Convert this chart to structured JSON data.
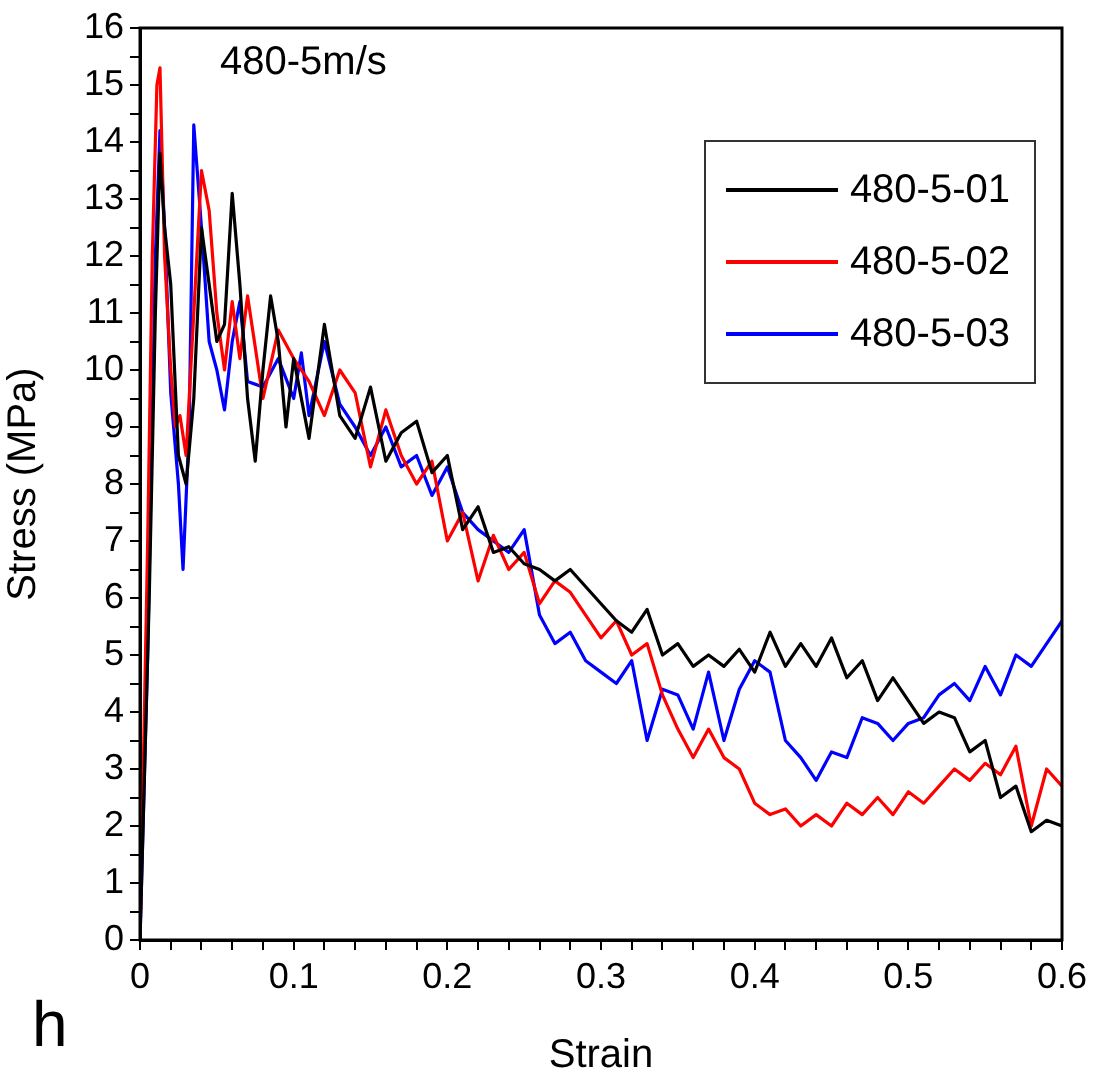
{
  "chart_data": {
    "type": "line",
    "title": "480-5m/s",
    "xlabel": "Strain",
    "ylabel": "Stress (MPa)",
    "annotations": [
      "h"
    ],
    "xlim": [
      0,
      0.6
    ],
    "ylim": [
      0,
      16
    ],
    "xticks": [
      0,
      {
        "value": 0.02,
        "label": null
      },
      {
        "value": 0.04,
        "label": null
      },
      {
        "value": 0.06,
        "label": null
      },
      {
        "value": 0.08,
        "label": null
      },
      0.1,
      {
        "value": 0.12,
        "label": null
      },
      {
        "value": 0.14,
        "label": null
      },
      {
        "value": 0.16,
        "label": null
      },
      {
        "value": 0.18,
        "label": null
      },
      0.2,
      {
        "value": 0.22,
        "label": null
      },
      {
        "value": 0.24,
        "label": null
      },
      {
        "value": 0.26,
        "label": null
      },
      {
        "value": 0.28,
        "label": null
      },
      0.3,
      {
        "value": 0.32,
        "label": null
      },
      {
        "value": 0.34,
        "label": null
      },
      {
        "value": 0.36,
        "label": null
      },
      {
        "value": 0.38,
        "label": null
      },
      0.4,
      {
        "value": 0.42,
        "label": null
      },
      {
        "value": 0.44,
        "label": null
      },
      {
        "value": 0.46,
        "label": null
      },
      {
        "value": 0.48,
        "label": null
      },
      0.5,
      {
        "value": 0.52,
        "label": null
      },
      {
        "value": 0.54,
        "label": null
      },
      {
        "value": 0.56,
        "label": null
      },
      {
        "value": 0.58,
        "label": null
      },
      0.6
    ],
    "yticks": [
      0,
      {
        "value": 0.5,
        "label": null
      },
      1,
      {
        "value": 1.5,
        "label": null
      },
      2,
      {
        "value": 2.5,
        "label": null
      },
      3,
      {
        "value": 3.5,
        "label": null
      },
      4,
      {
        "value": 4.5,
        "label": null
      },
      5,
      {
        "value": 5.5,
        "label": null
      },
      6,
      {
        "value": 6.5,
        "label": null
      },
      7,
      {
        "value": 7.5,
        "label": null
      },
      8,
      {
        "value": 8.5,
        "label": null
      },
      9,
      {
        "value": 9.5,
        "label": null
      },
      10,
      {
        "value": 10.5,
        "label": null
      },
      11,
      {
        "value": 11.5,
        "label": null
      },
      12,
      {
        "value": 12.5,
        "label": null
      },
      13,
      {
        "value": 13.5,
        "label": null
      },
      14,
      {
        "value": 14.5,
        "label": null
      },
      15,
      {
        "value": 15.5,
        "label": null
      },
      16
    ],
    "grid": false,
    "legend": "top right",
    "marker": "none",
    "line_style": "solid",
    "series": [
      {
        "name": "480-5-01",
        "color": "#000000",
        "x": [
          0,
          0.003,
          0.006,
          0.01,
          0.013,
          0.016,
          0.02,
          0.025,
          0.03,
          0.035,
          0.04,
          0.045,
          0.05,
          0.055,
          0.06,
          0.065,
          0.07,
          0.075,
          0.08,
          0.085,
          0.09,
          0.095,
          0.1,
          0.11,
          0.12,
          0.13,
          0.14,
          0.15,
          0.16,
          0.17,
          0.18,
          0.19,
          0.2,
          0.21,
          0.22,
          0.23,
          0.24,
          0.25,
          0.26,
          0.27,
          0.28,
          0.3,
          0.31,
          0.32,
          0.33,
          0.34,
          0.35,
          0.36,
          0.37,
          0.38,
          0.39,
          0.4,
          0.41,
          0.42,
          0.43,
          0.44,
          0.45,
          0.46,
          0.47,
          0.48,
          0.49,
          0.5,
          0.51,
          0.52,
          0.53,
          0.54,
          0.55,
          0.56,
          0.57,
          0.58,
          0.59,
          0.6
        ],
        "values": [
          0,
          3,
          6,
          11,
          13.8,
          12.5,
          11.5,
          8.5,
          8,
          9.5,
          12.5,
          11.5,
          10.5,
          10.8,
          13.1,
          11.5,
          9.5,
          8.4,
          10,
          11.3,
          10.5,
          9,
          10.2,
          8.8,
          10.8,
          9.2,
          8.8,
          9.7,
          8.4,
          8.9,
          9.1,
          8.2,
          8.5,
          7.2,
          7.6,
          6.8,
          6.9,
          6.6,
          6.5,
          6.3,
          6.5,
          5.9,
          5.6,
          5.4,
          5.8,
          5,
          5.2,
          4.8,
          5,
          4.8,
          5.1,
          4.7,
          5.4,
          4.8,
          5.2,
          4.8,
          5.3,
          4.6,
          4.9,
          4.2,
          4.6,
          4.2,
          3.8,
          4,
          3.9,
          3.3,
          3.5,
          2.5,
          2.7,
          1.9,
          2.1,
          2
        ]
      },
      {
        "name": "480-5-02",
        "color": "#ff0000",
        "x": [
          0,
          0.005,
          0.008,
          0.011,
          0.013,
          0.016,
          0.02,
          0.023,
          0.026,
          0.03,
          0.035,
          0.04,
          0.045,
          0.05,
          0.055,
          0.06,
          0.065,
          0.07,
          0.08,
          0.09,
          0.1,
          0.11,
          0.12,
          0.13,
          0.14,
          0.15,
          0.16,
          0.17,
          0.18,
          0.19,
          0.2,
          0.21,
          0.22,
          0.23,
          0.24,
          0.25,
          0.26,
          0.27,
          0.28,
          0.29,
          0.3,
          0.31,
          0.32,
          0.33,
          0.34,
          0.35,
          0.36,
          0.37,
          0.38,
          0.39,
          0.4,
          0.41,
          0.42,
          0.43,
          0.44,
          0.45,
          0.46,
          0.47,
          0.48,
          0.49,
          0.5,
          0.51,
          0.52,
          0.53,
          0.54,
          0.55,
          0.56,
          0.57,
          0.58,
          0.59,
          0.6
        ],
        "values": [
          0,
          7,
          12,
          15,
          15.3,
          12,
          10,
          9,
          9.2,
          8.5,
          11,
          13.5,
          12.8,
          11,
          10,
          11.2,
          10.2,
          11.3,
          9.5,
          10.7,
          10.2,
          9.8,
          9.2,
          10,
          9.6,
          8.3,
          9.3,
          8.5,
          8,
          8.4,
          7,
          7.5,
          6.3,
          7.1,
          6.5,
          6.8,
          5.9,
          6.3,
          6.1,
          5.7,
          5.3,
          5.6,
          5,
          5.2,
          4.3,
          3.7,
          3.2,
          3.7,
          3.2,
          3,
          2.4,
          2.2,
          2.3,
          2,
          2.2,
          2,
          2.4,
          2.2,
          2.5,
          2.2,
          2.6,
          2.4,
          2.7,
          3,
          2.8,
          3.1,
          2.9,
          3.4,
          2,
          3,
          2.7
        ]
      },
      {
        "name": "480-5-03",
        "color": "#0000ff",
        "x": [
          0,
          0.005,
          0.01,
          0.013,
          0.016,
          0.02,
          0.025,
          0.028,
          0.032,
          0.035,
          0.04,
          0.045,
          0.05,
          0.055,
          0.06,
          0.065,
          0.07,
          0.08,
          0.09,
          0.1,
          0.105,
          0.11,
          0.12,
          0.13,
          0.14,
          0.15,
          0.16,
          0.17,
          0.18,
          0.19,
          0.2,
          0.21,
          0.22,
          0.23,
          0.24,
          0.25,
          0.26,
          0.27,
          0.28,
          0.29,
          0.3,
          0.31,
          0.32,
          0.33,
          0.34,
          0.35,
          0.36,
          0.37,
          0.38,
          0.39,
          0.4,
          0.41,
          0.42,
          0.43,
          0.44,
          0.45,
          0.46,
          0.47,
          0.48,
          0.49,
          0.5,
          0.51,
          0.52,
          0.53,
          0.54,
          0.55,
          0.56,
          0.57,
          0.58,
          0.59,
          0.6
        ],
        "values": [
          0,
          5,
          12,
          14.2,
          12.5,
          9.6,
          8,
          6.5,
          9,
          14.3,
          12.5,
          10.5,
          10,
          9.3,
          10.5,
          11.2,
          9.8,
          9.7,
          10.2,
          9.5,
          10.3,
          9.2,
          10.5,
          9.4,
          9,
          8.5,
          9,
          8.3,
          8.5,
          7.8,
          8.3,
          7.5,
          7.2,
          7,
          6.8,
          7.2,
          5.7,
          5.2,
          5.4,
          4.9,
          4.7,
          4.5,
          4.9,
          3.5,
          4.4,
          4.3,
          3.7,
          4.7,
          3.5,
          4.4,
          4.9,
          4.7,
          3.5,
          3.2,
          2.8,
          3.3,
          3.2,
          3.9,
          3.8,
          3.5,
          3.8,
          3.9,
          4.3,
          4.5,
          4.2,
          4.8,
          4.3,
          5,
          4.8,
          5.2,
          5.6
        ]
      }
    ]
  }
}
